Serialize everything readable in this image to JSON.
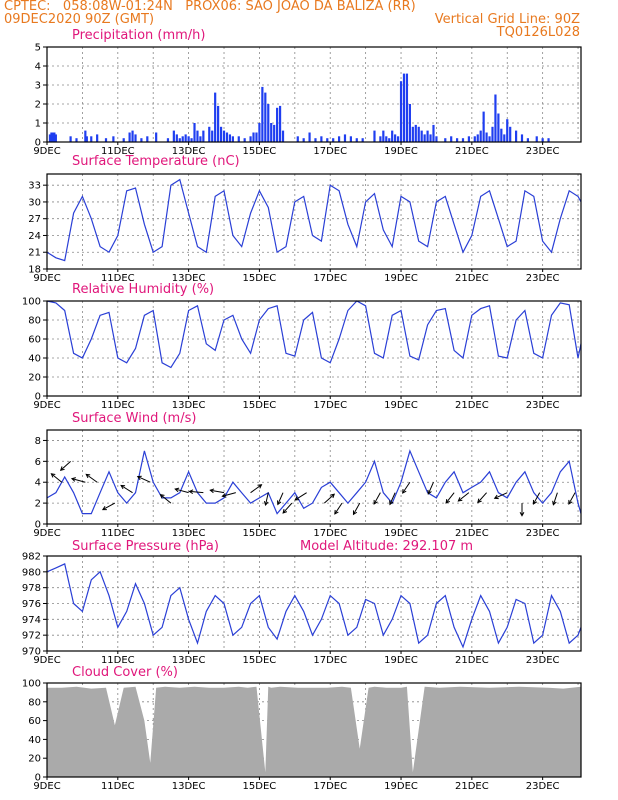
{
  "header": {
    "line1_left": "CPTEC:   058:08W-01:24N   PROX06: SAO JOAO DA BALIZA (RR)",
    "line2_left": "09DEC2020 90Z (GMT)",
    "line2_right": "Vertical Grid Line: 90Z",
    "line3_right": "TQ0126L028"
  },
  "colors": {
    "header": "#e8791f",
    "title": "#e0177b",
    "line": "#2a3fd6",
    "bar": "#1f3ef0",
    "cloud": "#aaaaaa",
    "wind_arrow": "#000000"
  },
  "x_labels": [
    "9DEC",
    "11DEC",
    "13DEC",
    "15DEC",
    "17DEC",
    "19DEC",
    "21DEC",
    "23DEC"
  ],
  "chart_data": [
    {
      "id": "precip",
      "type": "bar",
      "title": "Precipitation (mm/h)",
      "ylim": [
        0,
        5
      ],
      "yticks": [
        0,
        1,
        2,
        3,
        4,
        5
      ],
      "x_range_hours": [
        0,
        362
      ],
      "x": [
        2,
        3,
        4,
        5,
        6,
        16,
        20,
        26,
        27,
        30,
        34,
        40,
        45,
        52,
        56,
        58,
        60,
        64,
        68,
        74,
        82,
        86,
        88,
        90,
        92,
        94,
        96,
        98,
        100,
        102,
        104,
        106,
        110,
        112,
        114,
        116,
        118,
        120,
        122,
        124,
        126,
        130,
        134,
        138,
        140,
        142,
        144,
        146,
        148,
        150,
        152,
        154,
        156,
        158,
        160,
        170,
        174,
        178,
        182,
        186,
        190,
        194,
        198,
        202,
        206,
        210,
        214,
        222,
        226,
        228,
        230,
        232,
        234,
        236,
        238,
        240,
        242,
        244,
        246,
        248,
        250,
        252,
        254,
        256,
        258,
        260,
        262,
        264,
        270,
        274,
        278,
        282,
        286,
        290,
        292,
        294,
        296,
        298,
        300,
        302,
        304,
        306,
        308,
        310,
        312,
        314,
        318,
        322,
        326,
        332,
        336,
        340
      ],
      "values": [
        0.4,
        0.5,
        0.5,
        0.5,
        0.4,
        0.3,
        0.2,
        0.6,
        0.3,
        0.3,
        0.4,
        0.2,
        0.3,
        0.2,
        0.5,
        0.6,
        0.4,
        0.2,
        0.3,
        0.5,
        0.2,
        0.6,
        0.4,
        0.2,
        0.3,
        0.4,
        0.3,
        0.2,
        1.0,
        0.6,
        0.3,
        0.6,
        0.8,
        0.6,
        2.6,
        1.9,
        0.8,
        0.6,
        0.5,
        0.4,
        0.3,
        0.3,
        0.2,
        0.3,
        0.5,
        0.5,
        1.0,
        2.9,
        2.6,
        2.0,
        1.0,
        0.9,
        1.8,
        1.9,
        0.6,
        0.3,
        0.2,
        0.5,
        0.2,
        0.3,
        0.2,
        0.2,
        0.3,
        0.4,
        0.3,
        0.2,
        0.2,
        0.6,
        0.3,
        0.6,
        0.3,
        0.2,
        0.6,
        0.4,
        0.3,
        3.2,
        3.6,
        3.6,
        2.0,
        0.8,
        0.9,
        0.8,
        0.6,
        0.4,
        0.6,
        0.4,
        0.9,
        0.3,
        0.2,
        0.3,
        0.2,
        0.2,
        0.3,
        0.3,
        0.4,
        0.6,
        1.6,
        0.5,
        0.3,
        0.8,
        2.5,
        1.5,
        0.7,
        0.4,
        1.2,
        0.8,
        0.6,
        0.4,
        0.2,
        0.3,
        0.2,
        0.2
      ]
    },
    {
      "id": "temp",
      "type": "line",
      "title": "Surface Temperature (nC)",
      "ylim": [
        18,
        35
      ],
      "yticks": [
        18,
        21,
        24,
        27,
        30,
        33
      ],
      "x_range_hours": [
        0,
        362
      ],
      "x": [
        0,
        6,
        12,
        18,
        24,
        30,
        36,
        42,
        48,
        54,
        60,
        66,
        72,
        78,
        84,
        90,
        96,
        102,
        108,
        114,
        120,
        126,
        132,
        138,
        144,
        150,
        156,
        162,
        168,
        174,
        180,
        186,
        192,
        198,
        204,
        210,
        216,
        222,
        228,
        234,
        240,
        246,
        252,
        258,
        264,
        270,
        276,
        282,
        288,
        294,
        300,
        306,
        312,
        318,
        324,
        330,
        336,
        342,
        348,
        354,
        360,
        362
      ],
      "values": [
        21,
        20,
        19.5,
        28,
        31,
        27,
        22,
        21,
        24,
        32,
        32.5,
        26,
        21,
        22,
        33,
        34,
        28,
        22,
        21,
        31,
        32,
        24,
        22,
        28,
        32,
        29,
        21,
        22,
        30,
        31,
        24,
        23,
        33,
        32,
        26,
        22,
        30,
        31.5,
        25,
        22,
        31,
        30,
        23,
        22,
        30,
        31,
        26,
        21,
        24,
        31,
        32,
        27,
        22,
        23,
        32,
        31,
        23,
        21,
        27,
        32,
        31,
        30
      ]
    },
    {
      "id": "rh",
      "type": "line",
      "title": "Relative Humidity (%)",
      "ylim": [
        0,
        100
      ],
      "yticks": [
        0,
        20,
        40,
        60,
        80,
        100
      ],
      "x_range_hours": [
        0,
        362
      ],
      "x": [
        0,
        6,
        12,
        18,
        24,
        30,
        36,
        42,
        48,
        54,
        60,
        66,
        72,
        78,
        84,
        90,
        96,
        102,
        108,
        114,
        120,
        126,
        132,
        138,
        144,
        150,
        156,
        162,
        168,
        174,
        180,
        186,
        192,
        198,
        204,
        210,
        216,
        222,
        228,
        234,
        240,
        246,
        252,
        258,
        264,
        270,
        276,
        282,
        288,
        294,
        300,
        306,
        312,
        318,
        324,
        330,
        336,
        342,
        348,
        354,
        360,
        362
      ],
      "values": [
        100,
        98,
        90,
        45,
        40,
        60,
        85,
        88,
        40,
        35,
        50,
        85,
        90,
        35,
        30,
        45,
        90,
        95,
        55,
        48,
        80,
        85,
        60,
        45,
        80,
        92,
        95,
        45,
        42,
        80,
        88,
        40,
        35,
        60,
        90,
        100,
        95,
        45,
        40,
        85,
        90,
        42,
        38,
        75,
        90,
        92,
        48,
        40,
        85,
        92,
        95,
        42,
        40,
        80,
        90,
        45,
        40,
        85,
        98,
        96,
        40,
        55
      ]
    },
    {
      "id": "wind",
      "type": "line",
      "title": "Surface Wind (m/s)",
      "ylim": [
        0,
        9
      ],
      "yticks": [
        0,
        2,
        4,
        6,
        8
      ],
      "x_range_hours": [
        0,
        362
      ],
      "x": [
        0,
        6,
        12,
        18,
        24,
        30,
        36,
        42,
        48,
        54,
        60,
        66,
        72,
        78,
        84,
        90,
        96,
        102,
        108,
        114,
        120,
        126,
        132,
        138,
        144,
        150,
        156,
        162,
        168,
        174,
        180,
        186,
        192,
        198,
        204,
        210,
        216,
        222,
        228,
        234,
        240,
        246,
        252,
        258,
        264,
        270,
        276,
        282,
        288,
        294,
        300,
        306,
        312,
        318,
        324,
        330,
        336,
        342,
        348,
        354,
        360,
        362
      ],
      "values": [
        2.5,
        3,
        4.5,
        3,
        1,
        1,
        3,
        5,
        3,
        2,
        3,
        7,
        4,
        2.5,
        2.5,
        3,
        5,
        3,
        2,
        2,
        2.5,
        4,
        3,
        2,
        2.5,
        3,
        1,
        2,
        3,
        1.5,
        2,
        3.5,
        4,
        3,
        2,
        3,
        4,
        6,
        3,
        2,
        4,
        7,
        5,
        3,
        2.5,
        4,
        5,
        3,
        3.5,
        4,
        5,
        3,
        2.5,
        4,
        5,
        3,
        2,
        3,
        5,
        6,
        2,
        1
      ]
    },
    {
      "id": "pres",
      "type": "line",
      "title": "Surface Pressure (hPa)",
      "extra_label": "Model Altitude: 292.107 m",
      "ylim": [
        970,
        982
      ],
      "yticks": [
        970,
        972,
        974,
        976,
        978,
        980,
        982
      ],
      "x_range_hours": [
        0,
        362
      ],
      "x": [
        0,
        6,
        12,
        18,
        24,
        30,
        36,
        42,
        48,
        54,
        60,
        66,
        72,
        78,
        84,
        90,
        96,
        102,
        108,
        114,
        120,
        126,
        132,
        138,
        144,
        150,
        156,
        162,
        168,
        174,
        180,
        186,
        192,
        198,
        204,
        210,
        216,
        222,
        228,
        234,
        240,
        246,
        252,
        258,
        264,
        270,
        276,
        282,
        288,
        294,
        300,
        306,
        312,
        318,
        324,
        330,
        336,
        342,
        348,
        354,
        360,
        362
      ],
      "values": [
        980,
        980.5,
        981,
        976,
        975,
        979,
        980,
        977,
        973,
        975,
        978.5,
        976,
        972,
        973,
        977,
        978,
        974,
        971,
        975,
        977,
        976,
        972,
        973,
        976,
        977,
        973,
        971.5,
        975,
        977,
        975,
        972,
        974,
        977,
        976,
        972,
        973,
        976.5,
        976,
        972,
        974,
        977,
        976,
        971,
        972,
        976,
        977,
        973,
        970.5,
        974,
        977,
        975,
        971,
        973,
        976.5,
        976,
        971,
        972,
        977,
        975,
        971,
        972,
        973
      ]
    },
    {
      "id": "cloud",
      "type": "area",
      "title": "Cloud Cover (%)",
      "ylim": [
        0,
        100
      ],
      "yticks": [
        0,
        20,
        40,
        60,
        80,
        100
      ],
      "x_range_hours": [
        0,
        362
      ],
      "x": [
        0,
        10,
        20,
        30,
        40,
        46,
        52,
        60,
        66,
        70,
        74,
        80,
        90,
        100,
        110,
        120,
        130,
        136,
        142,
        148,
        150,
        152,
        158,
        170,
        190,
        200,
        206,
        212,
        218,
        222,
        230,
        240,
        244,
        248,
        256,
        266,
        280,
        300,
        320,
        340,
        350,
        362
      ],
      "values": [
        95,
        95,
        96,
        94,
        95,
        55,
        95,
        96,
        60,
        15,
        95,
        96,
        95,
        96,
        95,
        95,
        96,
        95,
        96,
        5,
        96,
        95,
        96,
        95,
        95,
        96,
        95,
        30,
        95,
        96,
        95,
        95,
        96,
        5,
        96,
        95,
        96,
        95,
        96,
        95,
        94,
        96
      ]
    }
  ]
}
